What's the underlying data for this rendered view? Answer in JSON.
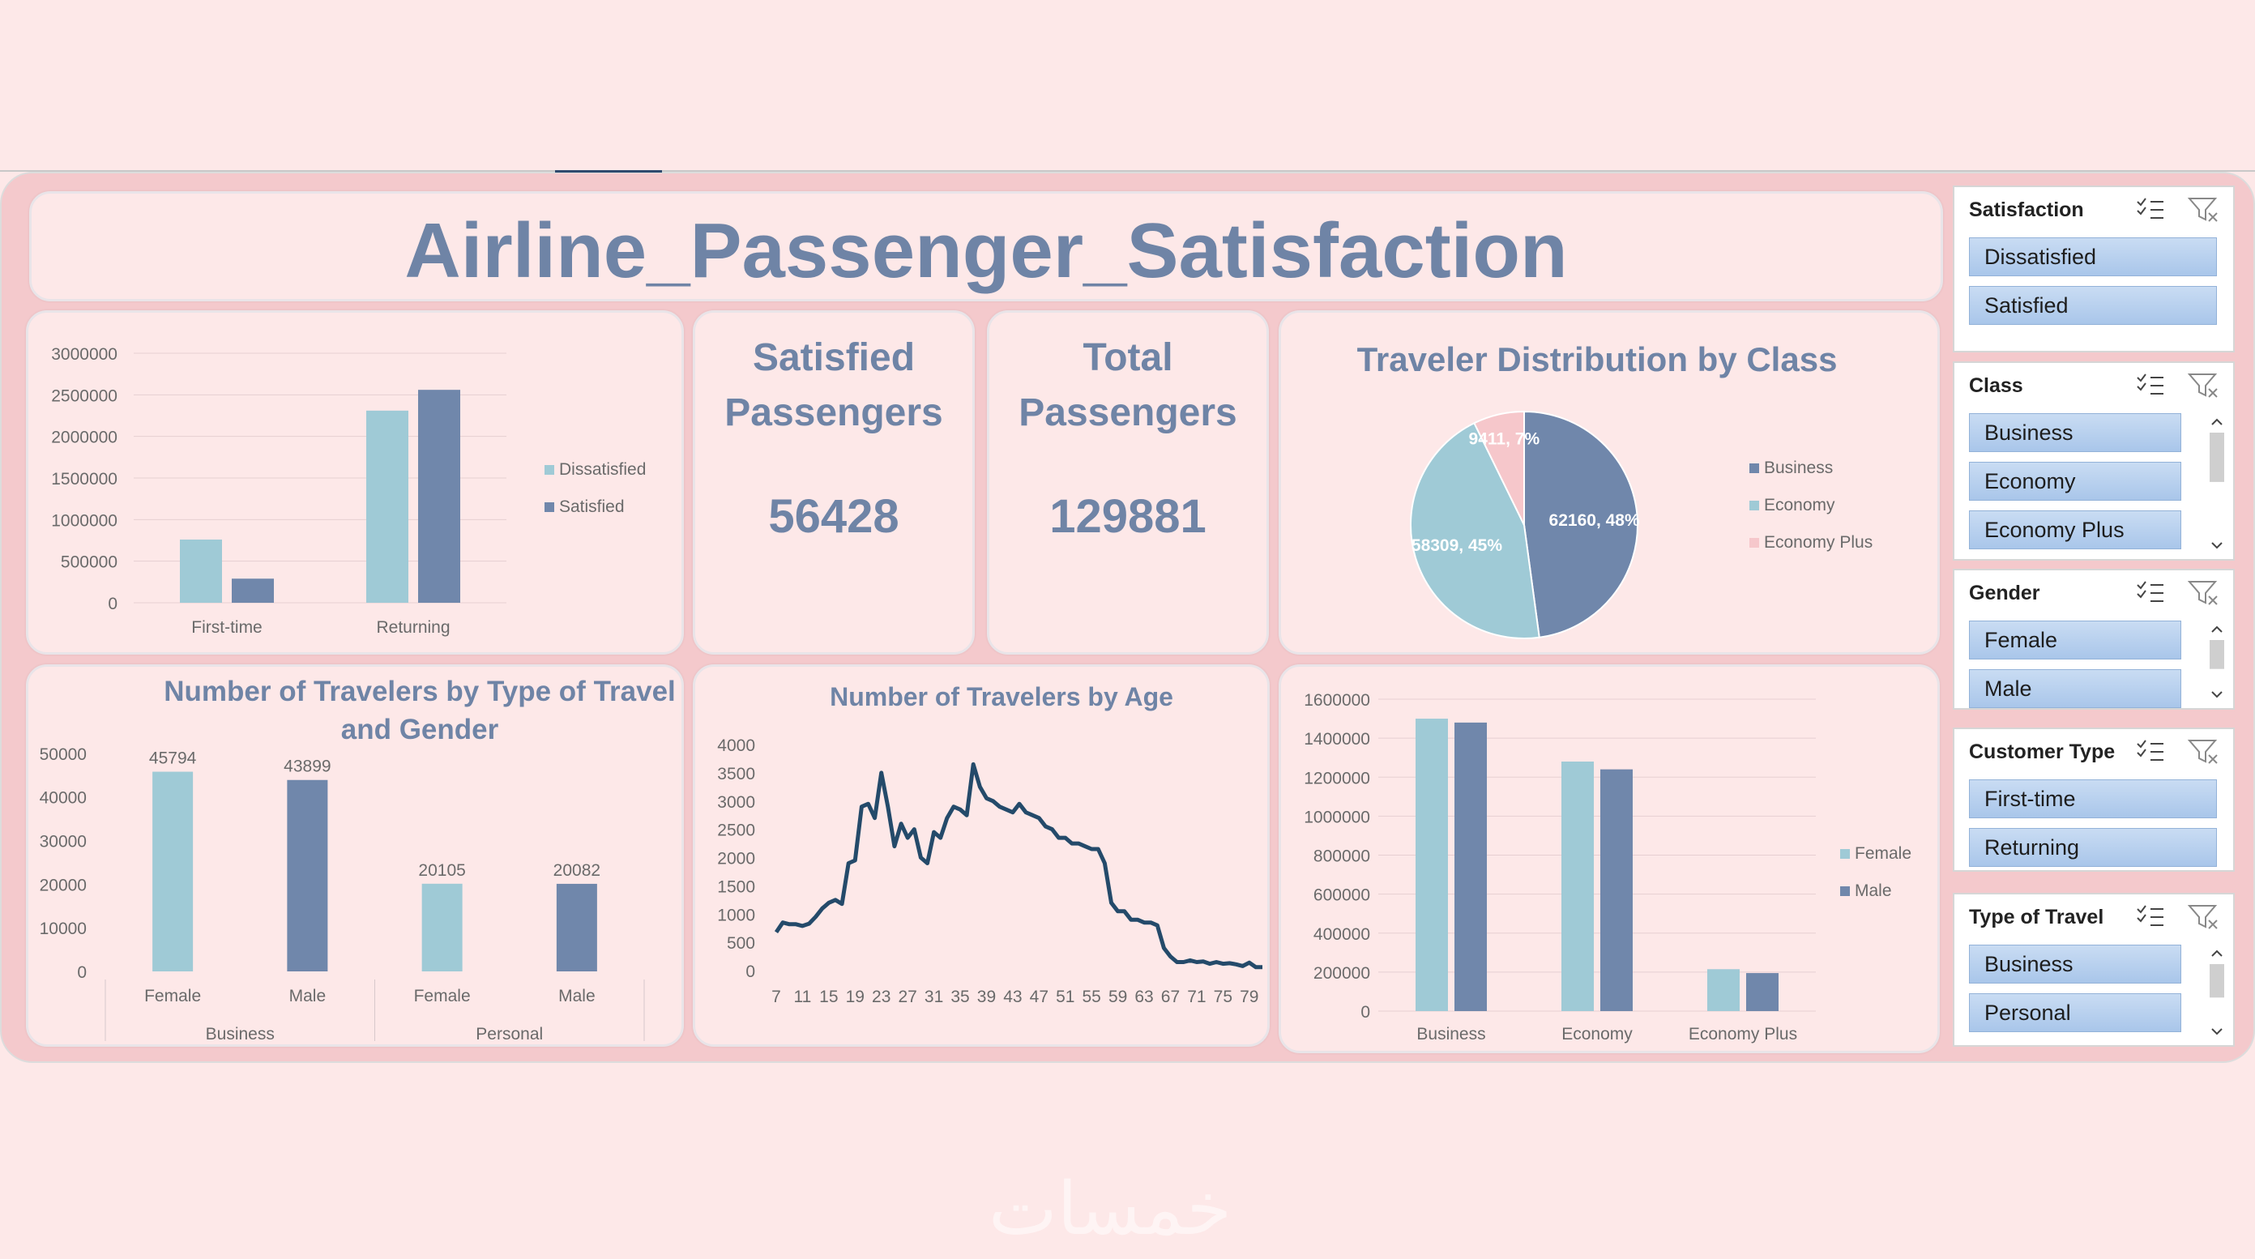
{
  "title": "Airline_Passenger_Satisfaction",
  "kpis": {
    "satisfied_label": "Satisfied Passengers",
    "satisfied_value": "56428",
    "total_label": "Total Passengers",
    "total_value": "129881"
  },
  "colors": {
    "light": "#9fcad6",
    "dark": "#7087ab",
    "pink": "#f4c9cc",
    "line": "#244a6a"
  },
  "chart_data": [
    {
      "type": "bar",
      "title": "",
      "categories": [
        "First-time",
        "Returning"
      ],
      "series": [
        {
          "name": "Dissatisfied",
          "values": [
            760000,
            2310000
          ]
        },
        {
          "name": "Satisfied",
          "values": [
            290000,
            2560000
          ]
        }
      ],
      "yticks": [
        "3000000",
        "2500000",
        "2000000",
        "1500000",
        "1000000",
        "500000",
        "0"
      ],
      "ylim": [
        0,
        3000000
      ],
      "legend": "right"
    },
    {
      "type": "pie",
      "title": "Traveler Distribution by Class",
      "labels": [
        "Business",
        "Economy",
        "Economy Plus"
      ],
      "values": [
        62160,
        58309,
        9411
      ],
      "data_labels": [
        "62160, 48%",
        "58309, 45%",
        "9411, 7%"
      ],
      "legend": "right"
    },
    {
      "type": "bar",
      "title": "Number of Travelers by Type of Travel and Gender",
      "title_lines": [
        "Number of Travelers by Type of Travel",
        "and Gender"
      ],
      "groups": [
        "Business",
        "Personal"
      ],
      "categories": [
        "Female",
        "Male",
        "Female",
        "Male"
      ],
      "values": [
        45794,
        43899,
        20105,
        20082
      ],
      "data_labels": [
        "45794",
        "43899",
        "20105",
        "20082"
      ],
      "yticks": [
        "50000",
        "40000",
        "30000",
        "20000",
        "10000",
        "0"
      ],
      "ylim": [
        0,
        55000
      ]
    },
    {
      "type": "line",
      "title": "Number of Travelers by Age",
      "xticks": [
        "7",
        "11",
        "15",
        "19",
        "23",
        "27",
        "31",
        "35",
        "39",
        "43",
        "47",
        "51",
        "55",
        "59",
        "63",
        "67",
        "71",
        "75",
        "79"
      ],
      "x": [
        7,
        8,
        9,
        10,
        11,
        12,
        13,
        14,
        15,
        16,
        17,
        18,
        19,
        20,
        21,
        22,
        23,
        24,
        25,
        26,
        27,
        28,
        29,
        30,
        31,
        32,
        33,
        34,
        35,
        36,
        37,
        38,
        39,
        40,
        41,
        42,
        43,
        44,
        45,
        46,
        47,
        48,
        49,
        50,
        51,
        52,
        53,
        54,
        55,
        56,
        57,
        58,
        59,
        60,
        61,
        62,
        63,
        64,
        65,
        66,
        67,
        68,
        69,
        70,
        71,
        72,
        73,
        74,
        75,
        76,
        77,
        78,
        79,
        80,
        81
      ],
      "y": [
        680,
        850,
        820,
        820,
        790,
        830,
        950,
        1100,
        1200,
        1250,
        1180,
        1900,
        1950,
        2900,
        2950,
        2700,
        3500,
        2900,
        2200,
        2600,
        2350,
        2500,
        2000,
        1900,
        2450,
        2350,
        2700,
        2900,
        2850,
        2750,
        3650,
        3250,
        3050,
        3000,
        2900,
        2850,
        2800,
        2950,
        2800,
        2750,
        2700,
        2550,
        2500,
        2350,
        2350,
        2250,
        2250,
        2200,
        2150,
        2150,
        1900,
        1200,
        1050,
        1050,
        900,
        900,
        850,
        850,
        800,
        400,
        250,
        150,
        150,
        180,
        150,
        160,
        120,
        150,
        120,
        130,
        110,
        80,
        140,
        60,
        60
      ],
      "yticks": [
        "4000",
        "3500",
        "3000",
        "2500",
        "2000",
        "1500",
        "1000",
        "500",
        "0"
      ],
      "ylim": [
        0,
        4000
      ]
    },
    {
      "type": "bar",
      "title": "",
      "categories": [
        "Business",
        "Economy",
        "Economy Plus"
      ],
      "series": [
        {
          "name": "Female",
          "values": [
            1500000,
            1280000,
            215000
          ]
        },
        {
          "name": "Male",
          "values": [
            1480000,
            1240000,
            195000
          ]
        }
      ],
      "yticks": [
        "1600000",
        "1400000",
        "1200000",
        "1000000",
        "800000",
        "600000",
        "400000",
        "200000",
        "0"
      ],
      "ylim": [
        0,
        1600000
      ],
      "legend": "right"
    }
  ],
  "slicers": [
    {
      "title": "Satisfaction",
      "items": [
        "Dissatisfied",
        "Satisfied"
      ],
      "scroll": false
    },
    {
      "title": "Class",
      "items": [
        "Business",
        "Economy",
        "Economy Plus"
      ],
      "scroll": true
    },
    {
      "title": "Gender",
      "items": [
        "Female",
        "Male"
      ],
      "scroll": true
    },
    {
      "title": "Customer Type",
      "items": [
        "First-time",
        "Returning"
      ],
      "scroll": false
    },
    {
      "title": "Type of Travel",
      "items": [
        "Business",
        "Personal"
      ],
      "scroll": true
    }
  ],
  "watermark": "خمسات"
}
